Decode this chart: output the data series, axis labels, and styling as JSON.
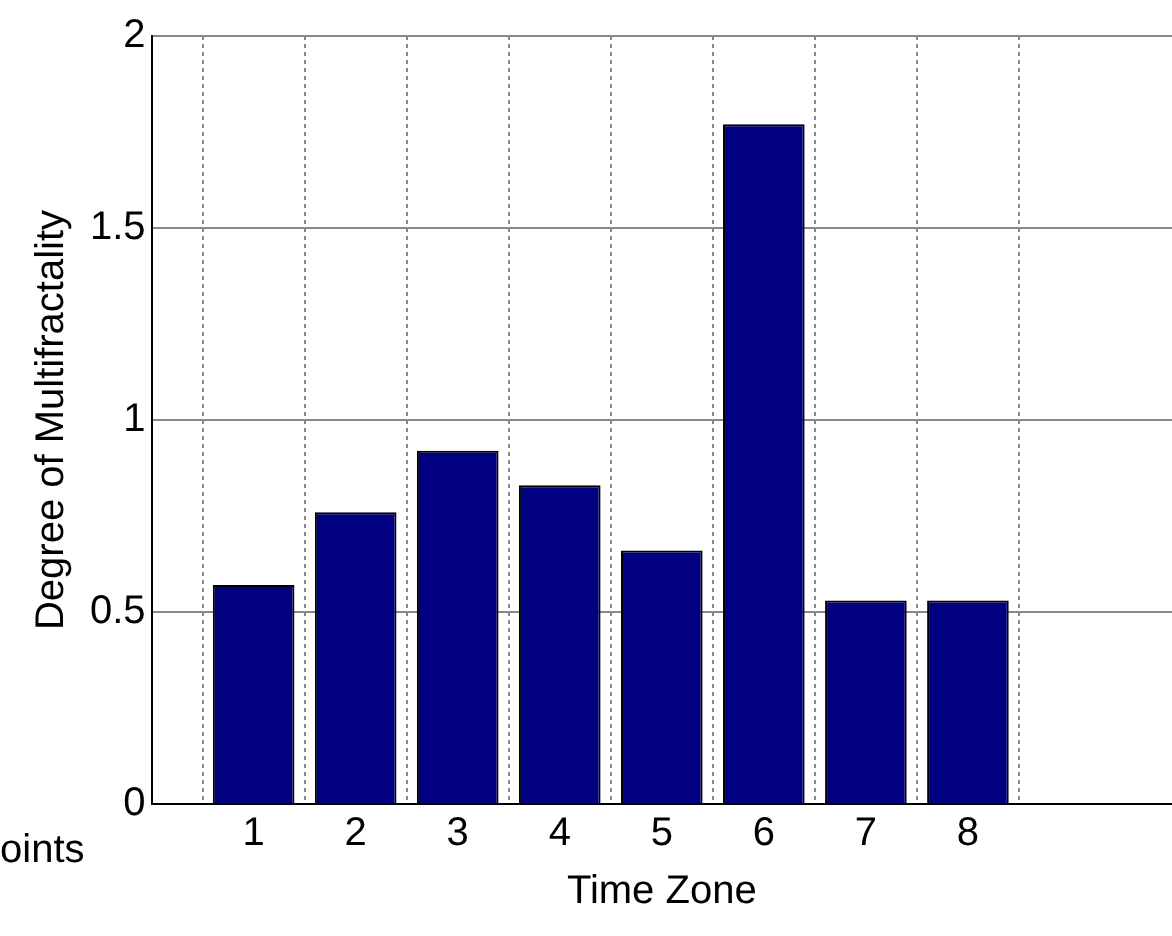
{
  "chart_data": {
    "type": "bar",
    "xlabel": "Time Zone",
    "ylabel": "Degree of Multifractality",
    "x": [
      1,
      2,
      3,
      4,
      5,
      6,
      7,
      8
    ],
    "values": [
      0.57,
      0.76,
      0.92,
      0.83,
      0.66,
      1.77,
      0.53,
      0.53
    ],
    "color": "#000080",
    "xlim": [
      0,
      10
    ],
    "xticks": [
      1,
      2,
      3,
      4,
      5,
      6,
      7,
      8
    ],
    "ylim": [
      0,
      2
    ],
    "yticks": [
      0,
      0.5,
      1,
      1.5,
      2
    ],
    "grid": true,
    "legend": false,
    "annotations": [
      "oints"
    ]
  }
}
